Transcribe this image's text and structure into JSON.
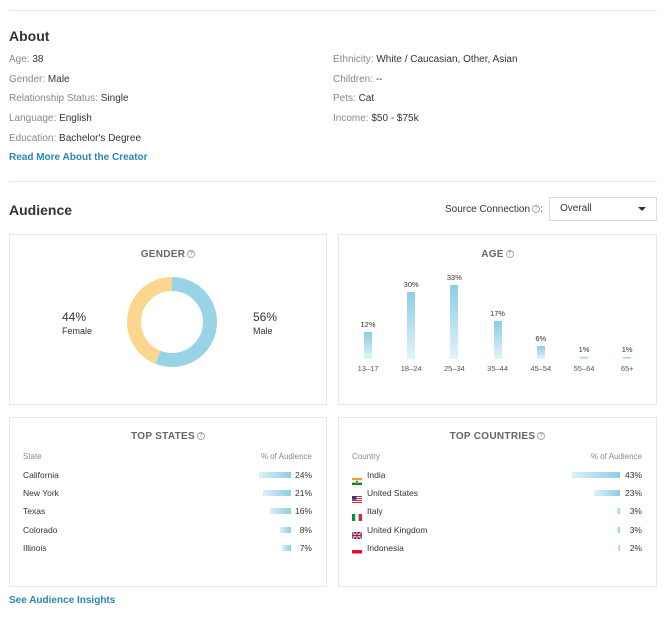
{
  "about": {
    "title": "About",
    "left": [
      {
        "label": "Age:",
        "value": "38"
      },
      {
        "label": "Gender:",
        "value": "Male"
      },
      {
        "label": "Relationship Status:",
        "value": "Single"
      },
      {
        "label": "Language:",
        "value": "English"
      },
      {
        "label": "Education:",
        "value": "Bachelor's Degree"
      }
    ],
    "right": [
      {
        "label": "Ethnicity:",
        "value": "White / Caucasian, Other, Asian"
      },
      {
        "label": "Children:",
        "value": "--"
      },
      {
        "label": "Pets:",
        "value": "Cat"
      },
      {
        "label": "Income:",
        "value": "$50 - $75k"
      }
    ],
    "read_more": "Read More About the Creator"
  },
  "audience": {
    "title": "Audience",
    "source_label": "Source Connection",
    "source_suffix": ":",
    "source_value": "Overall",
    "help_glyph": "?",
    "see_insights": "See Audience Insights"
  },
  "gender": {
    "title": "GENDER",
    "female_pct": "44%",
    "female_label": "Female",
    "male_pct": "56%",
    "male_label": "Male",
    "female_value": 44,
    "male_value": 56,
    "female_color": "#fcd68f",
    "male_color": "#98d4e6"
  },
  "chart_data": {
    "type": "bar",
    "title": "AGE",
    "categories": [
      "13–17",
      "18–24",
      "25–34",
      "35–44",
      "45–54",
      "55–64",
      "65+"
    ],
    "values": [
      12,
      30,
      33,
      17,
      6,
      1,
      1
    ],
    "labels": [
      "12%",
      "30%",
      "33%",
      "17%",
      "6%",
      "1%",
      "1%"
    ],
    "ylim": [
      0,
      33
    ]
  },
  "top_states": {
    "title": "TOP STATES",
    "col_name": "State",
    "col_pct": "% of Audience",
    "rows": [
      {
        "name": "California",
        "pct": "24%",
        "value": 24
      },
      {
        "name": "New York",
        "pct": "21%",
        "value": 21
      },
      {
        "name": "Texas",
        "pct": "16%",
        "value": 16
      },
      {
        "name": "Colorado",
        "pct": "8%",
        "value": 8
      },
      {
        "name": "Illinois",
        "pct": "7%",
        "value": 7
      }
    ]
  },
  "top_countries": {
    "title": "TOP COUNTRIES",
    "col_name": "Country",
    "col_pct": "% of Audience",
    "rows": [
      {
        "name": "India",
        "pct": "43%",
        "value": 43,
        "flag": "india-flag-icon"
      },
      {
        "name": "United States",
        "pct": "23%",
        "value": 23,
        "flag": "us-flag-icon"
      },
      {
        "name": "Italy",
        "pct": "3%",
        "value": 3,
        "flag": "italy-flag-icon"
      },
      {
        "name": "United Kingdom",
        "pct": "3%",
        "value": 3,
        "flag": "uk-flag-icon"
      },
      {
        "name": "Indonesia",
        "pct": "2%",
        "value": 2,
        "flag": "indonesia-flag-icon"
      }
    ]
  }
}
